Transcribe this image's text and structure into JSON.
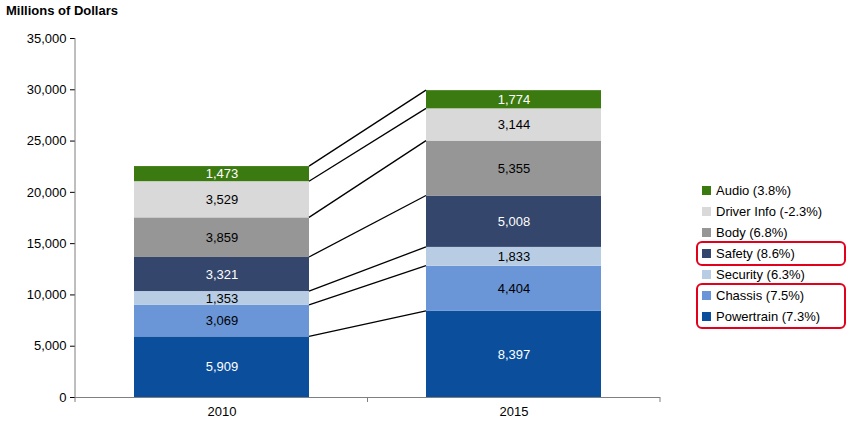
{
  "chart_data": {
    "type": "bar",
    "title": "Millions of Dollars",
    "categories": [
      "2010",
      "2015"
    ],
    "series": [
      {
        "name": "Powertrain (7.3%)",
        "color": "#0b4f9c",
        "values": [
          5909,
          8397
        ],
        "value_labels": [
          "5,909",
          "8,397"
        ]
      },
      {
        "name": "Chassis (7.5%)",
        "color": "#6a96d8",
        "values": [
          3069,
          4404
        ],
        "value_labels": [
          "3,069",
          "4,404"
        ]
      },
      {
        "name": "Security (6.3%)",
        "color": "#b8cde4",
        "values": [
          1353,
          1833
        ],
        "value_labels": [
          "1,353",
          "1,833"
        ]
      },
      {
        "name": "Safety (8.6%)",
        "color": "#34466b",
        "values": [
          3321,
          5008
        ],
        "value_labels": [
          "3,321",
          "5,008"
        ]
      },
      {
        "name": "Body (6.8%)",
        "color": "#969696",
        "values": [
          3859,
          5355
        ],
        "value_labels": [
          "3,859",
          "5,355"
        ]
      },
      {
        "name": "Driver Info (-2.3%)",
        "color": "#d9d9d9",
        "values": [
          3529,
          3144
        ],
        "value_labels": [
          "3,529",
          "3,144"
        ]
      },
      {
        "name": "Audio (3.8%)",
        "color": "#3b7a10",
        "values": [
          1473,
          1774
        ],
        "value_labels": [
          "1,473",
          "1,774"
        ]
      }
    ],
    "ylim": [
      0,
      35000
    ],
    "yticks": [
      0,
      {
        "value": 5000,
        "label": "5,000"
      },
      {
        "value": 10000,
        "label": "10,000"
      },
      {
        "value": 15000,
        "label": "15,000"
      },
      {
        "value": 20000,
        "label": "20,000"
      },
      {
        "value": 25000,
        "label": "25,000"
      },
      {
        "value": 30000,
        "label": "30,000"
      },
      {
        "value": 35000,
        "label": "35,000"
      }
    ],
    "stacked": true,
    "data_labels": true,
    "legend": "right"
  }
}
